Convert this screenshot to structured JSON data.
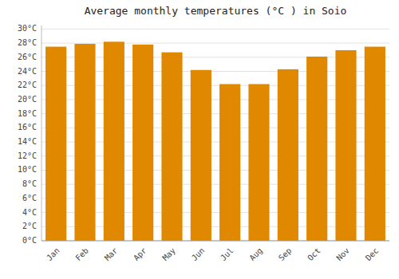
{
  "chart_data": {
    "type": "bar",
    "title": "Average monthly temperatures (°C ) in Soio",
    "categories": [
      "Jan",
      "Feb",
      "Mar",
      "Apr",
      "May",
      "Jun",
      "Jul",
      "Aug",
      "Sep",
      "Oct",
      "Nov",
      "Dec"
    ],
    "values": [
      27.5,
      27.9,
      28.2,
      27.8,
      26.7,
      24.2,
      22.2,
      22.2,
      24.3,
      26.1,
      27.0,
      27.5
    ],
    "color": "#E08800",
    "ylim": [
      0,
      30.5
    ],
    "yticks": [
      {
        "value": 0,
        "label": "0°C"
      },
      {
        "value": 2,
        "label": "2°C"
      },
      {
        "value": 4,
        "label": "4°C"
      },
      {
        "value": 6,
        "label": "6°C"
      },
      {
        "value": 8,
        "label": "8°C"
      },
      {
        "value": 10,
        "label": "10°C"
      },
      {
        "value": 12,
        "label": "12°C"
      },
      {
        "value": 14,
        "label": "14°C"
      },
      {
        "value": 16,
        "label": "16°C"
      },
      {
        "value": 18,
        "label": "18°C"
      },
      {
        "value": 20,
        "label": "20°C"
      },
      {
        "value": 22,
        "label": "22°C"
      },
      {
        "value": 24,
        "label": "24°C"
      },
      {
        "value": 26,
        "label": "26°C"
      },
      {
        "value": 28,
        "label": "28°C"
      },
      {
        "value": 30,
        "label": "30°C"
      }
    ],
    "grid": true
  }
}
